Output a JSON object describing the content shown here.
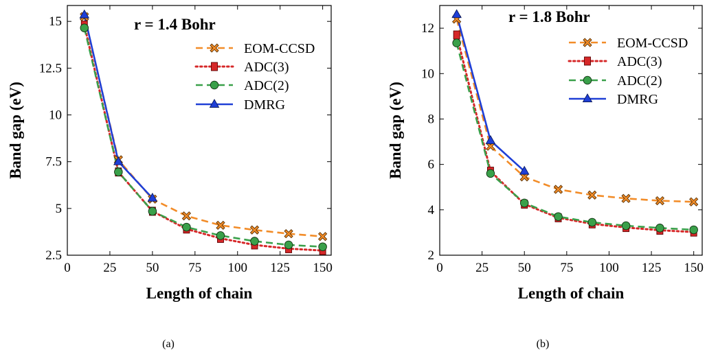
{
  "chart_data": [
    {
      "type": "line",
      "title": "r  = 1.4 Bohr",
      "caption": "(a)",
      "xlabel": "Length of chain",
      "ylabel": "Band gap (eV)",
      "xlim": [
        0,
        155
      ],
      "ylim": [
        2.5,
        15.85
      ],
      "xticks": [
        0,
        25,
        50,
        75,
        100,
        125,
        150
      ],
      "xtick_labels": [
        "0",
        "25",
        "50",
        "75",
        "100",
        "125",
        "150"
      ],
      "yticks": [
        2.5,
        5,
        7.5,
        10,
        12.5,
        15
      ],
      "ytick_labels": [
        "2.5",
        "5",
        "7.5",
        "10",
        "12.5",
        "15"
      ],
      "legend_position": "right, below title",
      "series": [
        {
          "name": "EOM-CCSD",
          "color": "#f28c28",
          "marker": "x",
          "dash": "dashed",
          "x": [
            10,
            30,
            50,
            70,
            90,
            110,
            130,
            150
          ],
          "y": [
            15.25,
            7.6,
            5.5,
            4.6,
            4.1,
            3.85,
            3.65,
            3.5
          ]
        },
        {
          "name": "ADC(3)",
          "color": "#d62728",
          "marker": "square",
          "dash": "dotted",
          "x": [
            10,
            30,
            50,
            70,
            90,
            110,
            130,
            150
          ],
          "y": [
            14.8,
            6.95,
            4.85,
            3.9,
            3.4,
            3.05,
            2.85,
            2.75
          ]
        },
        {
          "name": "ADC(2)",
          "color": "#3aa04a",
          "marker": "circle",
          "dash": "dashed",
          "x": [
            10,
            30,
            50,
            70,
            90,
            110,
            130,
            150
          ],
          "y": [
            14.65,
            6.95,
            4.85,
            4.0,
            3.55,
            3.25,
            3.05,
            2.95
          ]
        },
        {
          "name": "DMRG",
          "color": "#1f3fd6",
          "marker": "triangle",
          "dash": "solid",
          "x": [
            10,
            30,
            50
          ],
          "y": [
            15.35,
            7.5,
            5.55
          ]
        }
      ]
    },
    {
      "type": "line",
      "title": "r  = 1.8 Bohr",
      "caption": "(b)",
      "xlabel": "Length of chain",
      "ylabel": "Band gap (eV)",
      "xlim": [
        0,
        155
      ],
      "ylim": [
        2,
        13
      ],
      "xticks": [
        0,
        25,
        50,
        75,
        100,
        125,
        150
      ],
      "xtick_labels": [
        "0",
        "25",
        "50",
        "75",
        "100",
        "125",
        "150"
      ],
      "yticks": [
        2,
        4,
        6,
        8,
        10,
        12
      ],
      "ytick_labels": [
        "2",
        "4",
        "6",
        "8",
        "10",
        "12"
      ],
      "legend_position": "right, below title",
      "series": [
        {
          "name": "EOM-CCSD",
          "color": "#f28c28",
          "marker": "x",
          "dash": "dashed",
          "x": [
            10,
            30,
            50,
            70,
            90,
            110,
            130,
            150
          ],
          "y": [
            12.4,
            6.8,
            5.45,
            4.9,
            4.65,
            4.5,
            4.4,
            4.35
          ]
        },
        {
          "name": "ADC(3)",
          "color": "#d62728",
          "marker": "square",
          "dash": "dotted",
          "x": [
            10,
            30,
            50,
            70,
            90,
            110,
            130,
            150
          ],
          "y": [
            11.7,
            5.7,
            4.25,
            3.65,
            3.38,
            3.22,
            3.1,
            3.02
          ]
        },
        {
          "name": "ADC(2)",
          "color": "#3aa04a",
          "marker": "circle",
          "dash": "dashed",
          "x": [
            10,
            30,
            50,
            70,
            90,
            110,
            130,
            150
          ],
          "y": [
            11.35,
            5.6,
            4.3,
            3.7,
            3.45,
            3.3,
            3.2,
            3.12
          ]
        },
        {
          "name": "DMRG",
          "color": "#1f3fd6",
          "marker": "triangle",
          "dash": "solid",
          "x": [
            10,
            30,
            50
          ],
          "y": [
            12.6,
            7.05,
            5.7
          ]
        }
      ]
    }
  ]
}
